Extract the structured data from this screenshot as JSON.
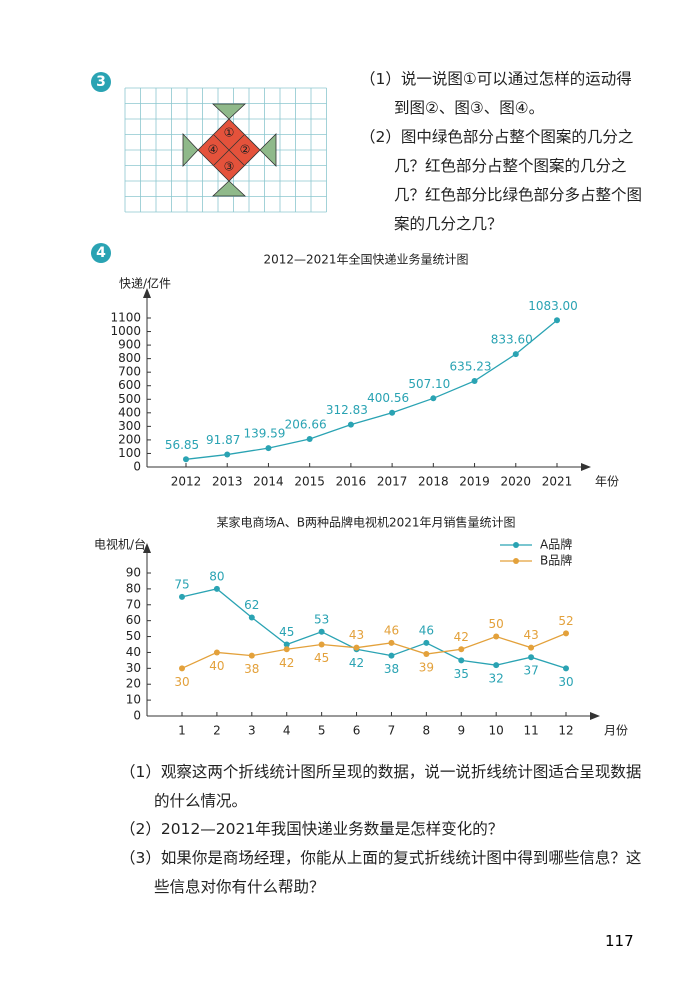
{
  "problem3": {
    "number": "3",
    "items": [
      "（1）说一说图①可以通过怎样的运动得到图②、图③、图④。",
      "（2）图中绿色部分占整个图案的几分之几？红色部分占整个图案的几分之几？红色部分比绿色部分多占整个图案的几分之几？"
    ],
    "figure_labels": [
      "①",
      "②",
      "③",
      "④"
    ]
  },
  "problem4": {
    "number": "4",
    "items": [
      "（1）观察这两个折线统计图所呈现的数据，说一说折线统计图适合呈现数据的什么情况。",
      "（2）2012—2021年我国快递业务数量是怎样变化的？",
      "（3）如果你是商场经理，你能从上面的复式折线统计图中得到哪些信息？这些信息对你有什么帮助？"
    ]
  },
  "page_number": "117",
  "chart_data": [
    {
      "type": "line",
      "title": "2012—2021年全国快递业务量统计图",
      "y_label": "快递/亿件",
      "x_label": "年份",
      "categories": [
        "2012",
        "2013",
        "2014",
        "2015",
        "2016",
        "2017",
        "2018",
        "2019",
        "2020",
        "2021"
      ],
      "values": [
        56.85,
        91.87,
        139.59,
        206.66,
        312.83,
        400.56,
        507.1,
        635.23,
        833.6,
        1083.0
      ],
      "value_labels": [
        "56.85",
        "91.87",
        "139.59",
        "206.66",
        "312.83",
        "400.56",
        "507.10",
        "635.23",
        "833.60",
        "1083.00"
      ],
      "color": "#2aa3b3",
      "ylim": [
        0,
        1100
      ],
      "yticks": [
        0,
        100,
        200,
        300,
        400,
        500,
        600,
        700,
        800,
        900,
        1000,
        1100
      ]
    },
    {
      "type": "line",
      "title": "某家电商场A、B两种品牌电视机2021年月销售量统计图",
      "y_label": "电视机/台",
      "x_label": "月份",
      "categories": [
        "1",
        "2",
        "3",
        "4",
        "5",
        "6",
        "7",
        "8",
        "9",
        "10",
        "11",
        "12"
      ],
      "series": [
        {
          "name": "A品牌",
          "color": "#2aa3b3",
          "values": [
            75,
            80,
            62,
            45,
            53,
            42,
            38,
            46,
            35,
            32,
            37,
            30
          ]
        },
        {
          "name": "B品牌",
          "color": "#e3a13b",
          "values": [
            30,
            40,
            38,
            42,
            45,
            43,
            46,
            39,
            42,
            50,
            43,
            52
          ]
        }
      ],
      "ylim": [
        0,
        90
      ],
      "yticks": [
        0,
        10,
        20,
        30,
        40,
        50,
        60,
        70,
        80,
        90
      ],
      "legend": "top-right"
    }
  ]
}
